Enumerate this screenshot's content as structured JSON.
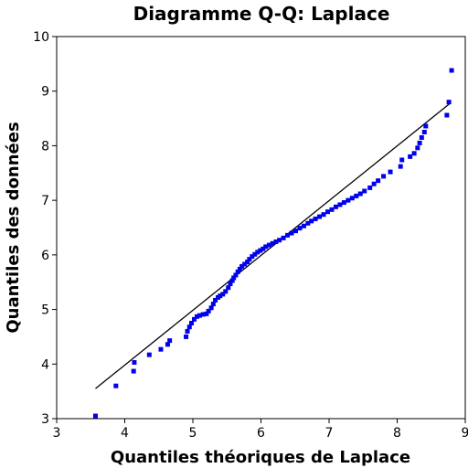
{
  "chart_data": {
    "type": "scatter",
    "title": "Diagramme Q-Q: Laplace",
    "xlabel": "Quantiles théoriques de Laplace",
    "ylabel": "Quantiles des données",
    "xlim": [
      3,
      9
    ],
    "ylim": [
      3,
      10
    ],
    "xticks": [
      3,
      4,
      5,
      6,
      7,
      8,
      9
    ],
    "yticks": [
      3,
      4,
      5,
      6,
      7,
      8,
      9,
      10
    ],
    "grid": false,
    "point_color": "#0000ee",
    "line_color": "#000000",
    "reference_line": {
      "x": [
        3.57,
        8.78
      ],
      "y": [
        3.55,
        8.78
      ]
    },
    "points": {
      "x": [
        3.57,
        3.87,
        4.13,
        4.14,
        4.36,
        4.53,
        4.63,
        4.66,
        4.9,
        4.92,
        4.95,
        4.98,
        5.02,
        5.06,
        5.1,
        5.15,
        5.2,
        5.23,
        5.27,
        5.3,
        5.33,
        5.37,
        5.4,
        5.44,
        5.48,
        5.52,
        5.55,
        5.58,
        5.6,
        5.63,
        5.66,
        5.69,
        5.72,
        5.76,
        5.8,
        5.83,
        5.87,
        5.91,
        5.95,
        5.99,
        6.03,
        6.07,
        6.12,
        6.17,
        6.22,
        6.27,
        6.33,
        6.39,
        6.45,
        6.51,
        6.57,
        6.63,
        6.69,
        6.74,
        6.8,
        6.86,
        6.92,
        6.98,
        7.04,
        7.1,
        7.16,
        7.22,
        7.28,
        7.34,
        7.4,
        7.46,
        7.52,
        7.6,
        7.66,
        7.72,
        7.8,
        7.9,
        8.05,
        8.07,
        8.19,
        8.25,
        8.3,
        8.33,
        8.36,
        8.4,
        8.42,
        8.73,
        8.76,
        8.8
      ],
      "y": [
        3.05,
        3.6,
        3.87,
        4.03,
        4.17,
        4.27,
        4.36,
        4.43,
        4.5,
        4.6,
        4.68,
        4.75,
        4.82,
        4.87,
        4.89,
        4.91,
        4.92,
        4.97,
        5.03,
        5.1,
        5.17,
        5.22,
        5.25,
        5.28,
        5.33,
        5.4,
        5.47,
        5.53,
        5.58,
        5.63,
        5.69,
        5.74,
        5.79,
        5.83,
        5.87,
        5.92,
        5.97,
        6.01,
        6.05,
        6.08,
        6.11,
        6.15,
        6.18,
        6.21,
        6.24,
        6.27,
        6.31,
        6.36,
        6.4,
        6.44,
        6.49,
        6.53,
        6.58,
        6.62,
        6.66,
        6.7,
        6.74,
        6.79,
        6.83,
        6.88,
        6.92,
        6.96,
        7.0,
        7.04,
        7.08,
        7.12,
        7.17,
        7.23,
        7.3,
        7.36,
        7.44,
        7.52,
        7.62,
        7.74,
        7.8,
        7.86,
        7.96,
        8.05,
        8.15,
        8.25,
        8.36,
        8.56,
        8.8,
        9.38
      ]
    }
  }
}
